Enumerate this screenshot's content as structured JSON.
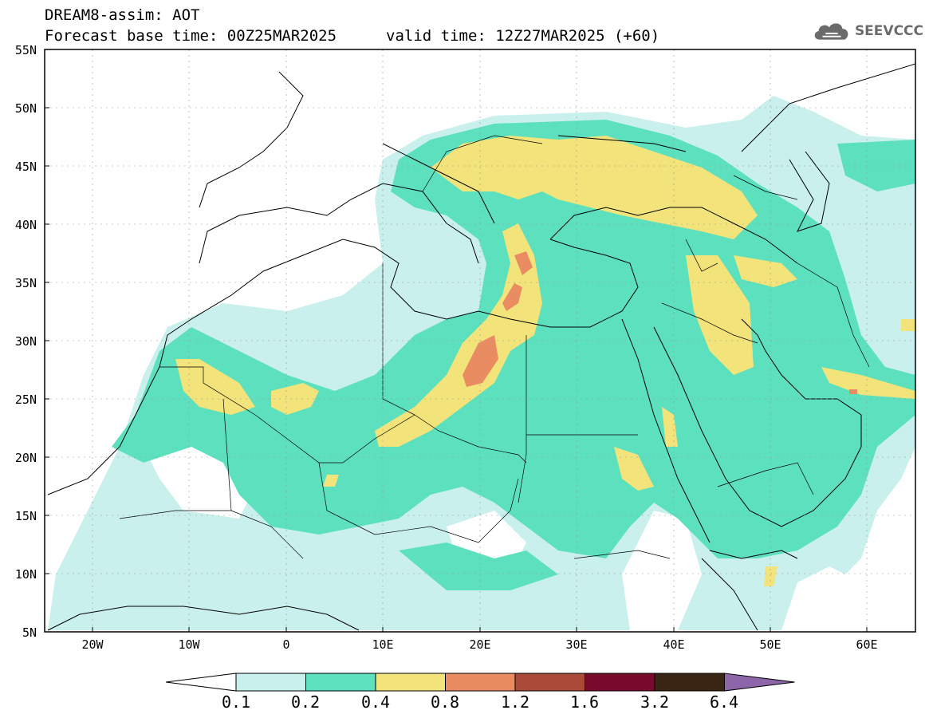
{
  "title": {
    "line1": "DREAM8-assim: AOT",
    "line2_left": "Forecast base time: 00Z25MAR2025",
    "line2_right": "valid time: 12Z27MAR2025 (+60)"
  },
  "logo": {
    "icon": "cloud-icon",
    "text": "SEEVCCC"
  },
  "axes": {
    "y_ticks": [
      "55N",
      "50N",
      "45N",
      "40N",
      "35N",
      "30N",
      "25N",
      "20N",
      "15N",
      "10N",
      "5N"
    ],
    "x_ticks": [
      "20W",
      "10W",
      "0",
      "10E",
      "20E",
      "30E",
      "40E",
      "50E",
      "60E"
    ]
  },
  "colorbar": {
    "labels": [
      "0.1",
      "0.2",
      "0.4",
      "0.8",
      "1.2",
      "1.6",
      "3.2",
      "6.4"
    ],
    "colors": [
      "#ffffff",
      "#c9f0ec",
      "#5ce0be",
      "#f2e37a",
      "#e98c62",
      "#aa4a38",
      "#7a0a2c",
      "#3a2414",
      "#8c66a8"
    ]
  },
  "chart_data": {
    "type": "heatmap",
    "variable": "AOT",
    "lon_range": [
      -25,
      65
    ],
    "lat_range": [
      5,
      55
    ],
    "levels": [
      0.1,
      0.2,
      0.4,
      0.8,
      1.2,
      1.6,
      3.2,
      6.4
    ]
  }
}
